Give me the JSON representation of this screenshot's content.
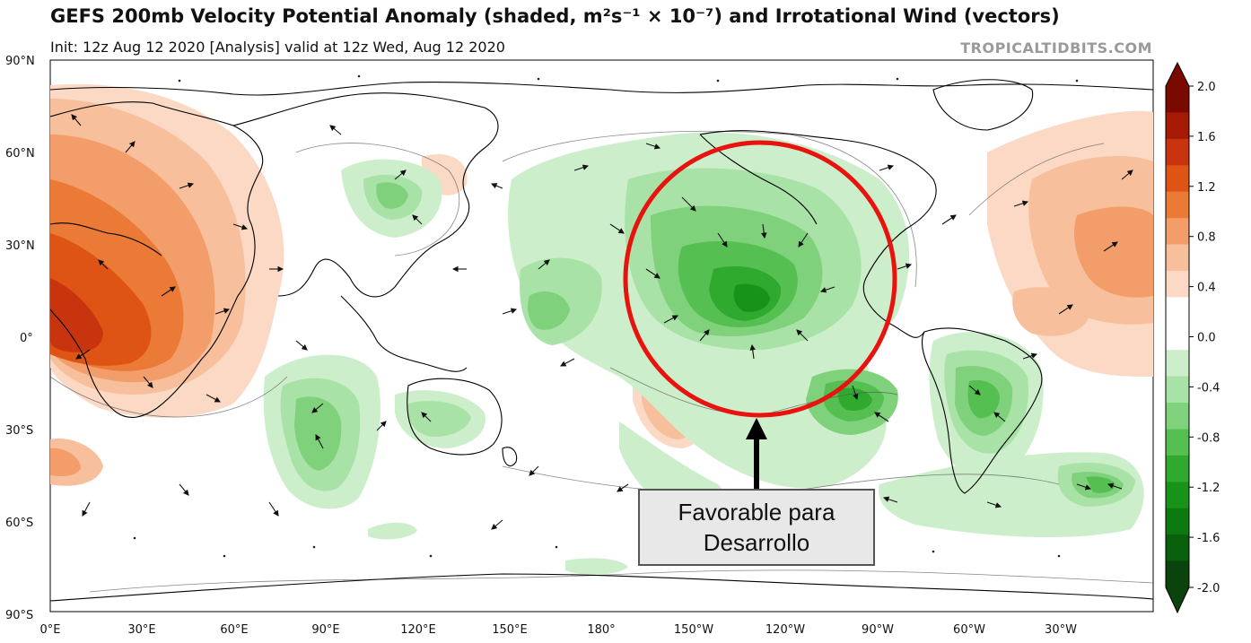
{
  "title": "GEFS 200mb Velocity Potential Anomaly (shaded, m²s⁻¹ × 10⁻⁷) and Irrotational Wind (vectors)",
  "subtitle": "Init: 12z Aug 12 2020   [Analysis]   valid at 12z Wed, Aug 12 2020",
  "credit": "TROPICALTIDBITS.COM",
  "lat_labels": [
    "90°N",
    "60°N",
    "30°N",
    "0°",
    "30°S",
    "60°S",
    "90°S"
  ],
  "lon_labels": [
    "0°E",
    "30°E",
    "60°E",
    "90°E",
    "120°E",
    "150°E",
    "180°",
    "150°W",
    "120°W",
    "90°W",
    "60°W",
    "30°W"
  ],
  "colorbar": {
    "ticks": [
      "2.0",
      "1.6",
      "1.2",
      "0.8",
      "0.4",
      "0.0",
      "-0.4",
      "-0.8",
      "-1.2",
      "-1.6",
      "-2.0"
    ],
    "colors": [
      "#7a0a00",
      "#a51a05",
      "#c8340d",
      "#de5414",
      "#ea7a35",
      "#f29d6a",
      "#f7bf9c",
      "#fbd9c4",
      "#ffffff",
      "#ffffff",
      "#cdeecb",
      "#a9e2a6",
      "#7fd17b",
      "#55bf52",
      "#2fa92e",
      "#17931a",
      "#0c7a10",
      "#085f0c",
      "#0a430c"
    ]
  },
  "annotation": {
    "circle_color": "#e8130f",
    "line1": "Favorable para",
    "line2": "Desarrollo"
  }
}
